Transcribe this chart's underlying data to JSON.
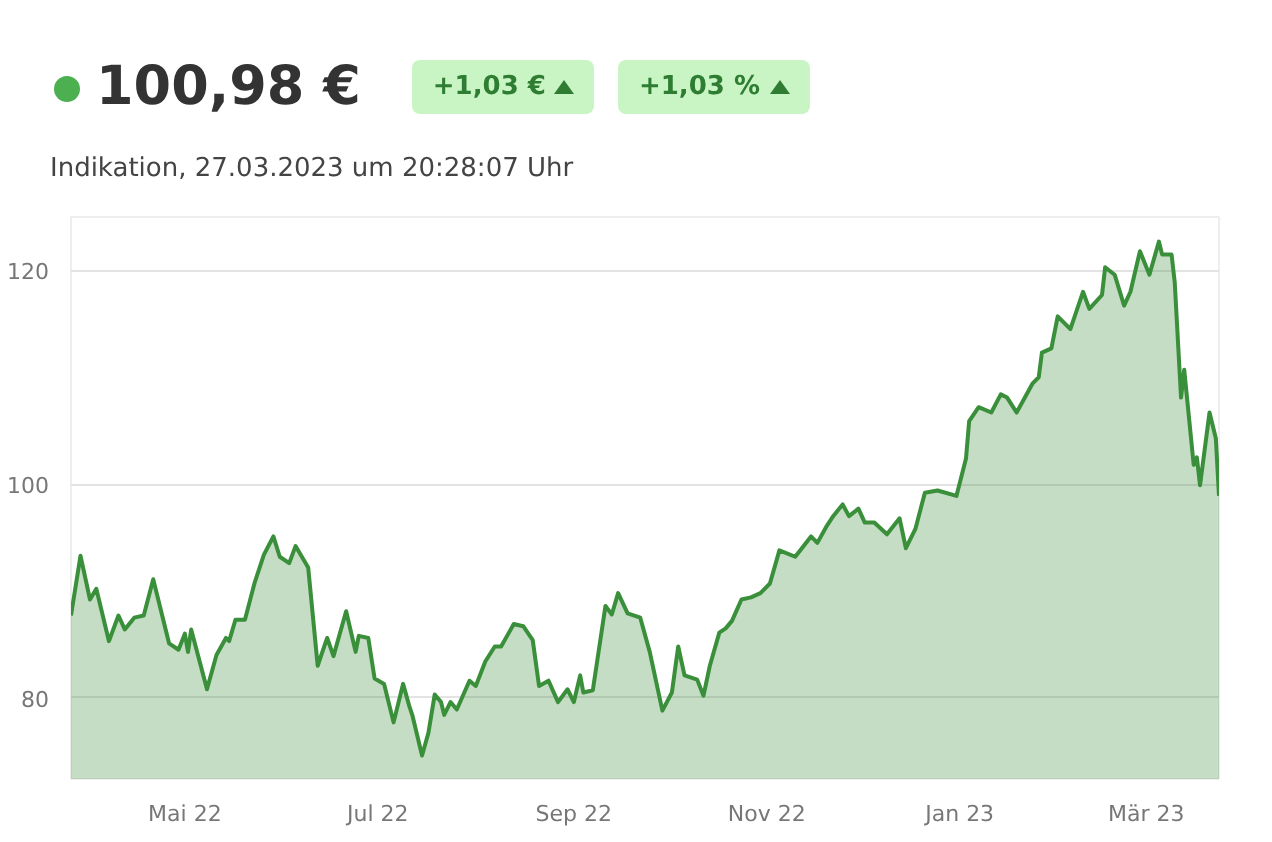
{
  "chart_data": {
    "type": "area",
    "title": "100,98 €",
    "subtitle": "Indikation, 27.03.2023 um 20:28:07 Uhr",
    "annotations": [
      "+1,03 €",
      "+1,03 %"
    ],
    "x": [
      "2022-03-26",
      "2022-03-29",
      "2022-04-01",
      "2022-04-03",
      "2022-04-07",
      "2022-04-10",
      "2022-04-12",
      "2022-04-15",
      "2022-04-18",
      "2022-04-21",
      "2022-04-26",
      "2022-04-29",
      "2022-05-01",
      "2022-05-02",
      "2022-05-03",
      "2022-05-08",
      "2022-05-11",
      "2022-05-14",
      "2022-05-15",
      "2022-05-17",
      "2022-05-20",
      "2022-05-23",
      "2022-05-26",
      "2022-05-29",
      "2022-05-31",
      "2022-06-03",
      "2022-06-05",
      "2022-06-09",
      "2022-06-12",
      "2022-06-15",
      "2022-06-17",
      "2022-06-21",
      "2022-06-24",
      "2022-06-25",
      "2022-06-28",
      "2022-06-30",
      "2022-07-03",
      "2022-07-06",
      "2022-07-09",
      "2022-07-11",
      "2022-07-12",
      "2022-07-15",
      "2022-07-17",
      "2022-07-19",
      "2022-07-21",
      "2022-07-22",
      "2022-07-24",
      "2022-07-26",
      "2022-07-30",
      "2022-08-01",
      "2022-08-04",
      "2022-08-07",
      "2022-08-09",
      "2022-08-13",
      "2022-08-16",
      "2022-08-19",
      "2022-08-21",
      "2022-08-24",
      "2022-08-27",
      "2022-08-30",
      "2022-09-01",
      "2022-09-03",
      "2022-09-04",
      "2022-09-07",
      "2022-09-11",
      "2022-09-13",
      "2022-09-15",
      "2022-09-18",
      "2022-09-22",
      "2022-09-25",
      "2022-09-29",
      "2022-10-02",
      "2022-10-04",
      "2022-10-06",
      "2022-10-10",
      "2022-10-12",
      "2022-10-14",
      "2022-10-17",
      "2022-10-19",
      "2022-10-21",
      "2022-10-24",
      "2022-10-27",
      "2022-10-30",
      "2022-11-02",
      "2022-11-05",
      "2022-11-10",
      "2022-11-15",
      "2022-11-17",
      "2022-11-20",
      "2022-11-22",
      "2022-11-25",
      "2022-11-27",
      "2022-11-30",
      "2022-12-02",
      "2022-12-05",
      "2022-12-09",
      "2022-12-13",
      "2022-12-15",
      "2022-12-18",
      "2022-12-21",
      "2022-12-25",
      "2022-12-31",
      "2023-01-03",
      "2023-01-04",
      "2023-01-07",
      "2023-01-11",
      "2023-01-14",
      "2023-01-16",
      "2023-01-19",
      "2023-01-24",
      "2023-01-26",
      "2023-01-27",
      "2023-01-30",
      "2023-02-01",
      "2023-02-05",
      "2023-02-09",
      "2023-02-11",
      "2023-02-15",
      "2023-02-16",
      "2023-02-19",
      "2023-02-22",
      "2023-02-24",
      "2023-02-27",
      "2023-03-02",
      "2023-03-05",
      "2023-03-06",
      "2023-03-09",
      "2023-03-10",
      "2023-03-12",
      "2023-03-13",
      "2023-03-16",
      "2023-03-17",
      "2023-03-18",
      "2023-03-21",
      "2023-03-23",
      "2023-03-24"
    ],
    "series": [
      {
        "color": "#3a8f3a",
        "values": [
          87.7,
          93.3,
          89.2,
          90.2,
          85.3,
          87.7,
          86.4,
          87.5,
          87.7,
          91.1,
          85.1,
          84.5,
          86.0,
          84.3,
          86.4,
          80.8,
          84.0,
          85.6,
          85.3,
          87.3,
          87.3,
          90.7,
          93.4,
          95.1,
          93.2,
          92.6,
          94.2,
          92.2,
          83.0,
          85.6,
          83.9,
          88.1,
          84.3,
          85.8,
          85.6,
          81.8,
          81.3,
          77.7,
          81.3,
          79.2,
          78.3,
          74.6,
          76.7,
          80.3,
          79.6,
          78.4,
          79.6,
          78.9,
          81.6,
          81.1,
          83.4,
          84.8,
          84.8,
          86.9,
          86.7,
          85.4,
          81.1,
          81.6,
          79.6,
          80.8,
          79.6,
          82.1,
          80.5,
          80.7,
          88.6,
          87.8,
          89.8,
          87.9,
          87.5,
          84.3,
          78.8,
          80.5,
          84.8,
          82.1,
          81.7,
          80.2,
          83.0,
          86.1,
          86.5,
          87.2,
          89.2,
          89.4,
          89.8,
          90.7,
          93.8,
          93.2,
          95.1,
          94.5,
          96.1,
          97.0,
          98.1,
          97.0,
          97.7,
          96.4,
          96.4,
          95.3,
          96.8,
          94.0,
          95.8,
          99.2,
          99.4,
          98.9,
          102.4,
          105.9,
          107.2,
          106.7,
          108.4,
          108.1,
          106.7,
          109.4,
          110.0,
          112.3,
          112.7,
          115.7,
          114.5,
          118.0,
          116.4,
          117.7,
          120.3,
          119.6,
          116.7,
          118.0,
          121.8,
          119.6,
          122.7,
          121.5,
          121.5,
          118.9,
          108.1,
          110.7,
          101.8,
          102.5,
          99.9,
          106.7,
          104.3,
          98.9
        ]
      }
    ],
    "xlim": [
      "2022-03-26",
      "2023-03-24"
    ],
    "xticks": [
      {
        "value": "2022-05-01",
        "label": "Mai 22"
      },
      {
        "value": "2022-07-01",
        "label": "Jul 22"
      },
      {
        "value": "2022-09-01",
        "label": "Sep 22"
      },
      {
        "value": "2022-11-01",
        "label": "Nov 22"
      },
      {
        "value": "2023-01-01",
        "label": "Jan 23"
      },
      {
        "value": "2023-03-01",
        "label": "Mär 23"
      }
    ],
    "ylim": [
      72.4,
      125
    ],
    "yticks": [
      80,
      100,
      120
    ],
    "grid": "y",
    "marker": "none",
    "line_style": "solid"
  }
}
